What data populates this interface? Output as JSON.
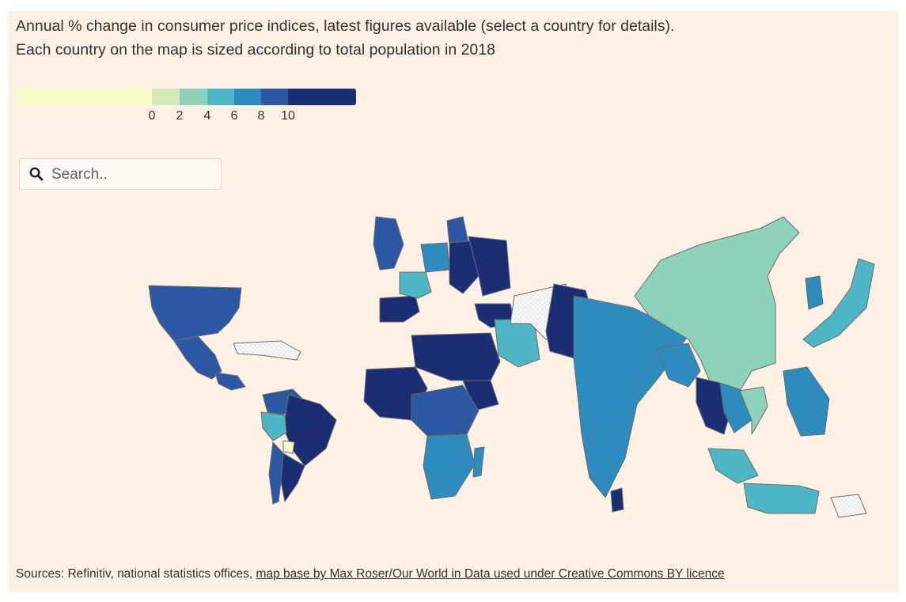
{
  "header": {
    "subtitle_line1": "Annual % change in consumer price indices, latest figures available (select a country for details).",
    "subtitle_line2": "Each country on the map is sized according to total population in 2018"
  },
  "legend": {
    "ticks": [
      "0",
      "2",
      "4",
      "6",
      "8",
      "10"
    ],
    "colors": [
      "#f7fbc8",
      "#d3ecb7",
      "#8fd2bb",
      "#4fb6c5",
      "#2d8bbd",
      "#2c58a3",
      "#1c2e73"
    ]
  },
  "search": {
    "placeholder": "Search..",
    "icon": "search-icon"
  },
  "map": {
    "nodata_fill": "#ebebeb",
    "regions": [
      {
        "name": "north-america",
        "level": 5
      },
      {
        "name": "mexico",
        "level": 5
      },
      {
        "name": "central-america",
        "level": 5
      },
      {
        "name": "caribbean",
        "level": "nodata"
      },
      {
        "name": "colombia-venezuela",
        "level": 5
      },
      {
        "name": "brazil",
        "level": 6
      },
      {
        "name": "peru",
        "level": 3
      },
      {
        "name": "bolivia",
        "level": 0
      },
      {
        "name": "chile",
        "level": 5
      },
      {
        "name": "argentina",
        "level": 6
      },
      {
        "name": "united-kingdom",
        "level": 5
      },
      {
        "name": "iberia",
        "level": 6
      },
      {
        "name": "france",
        "level": 3
      },
      {
        "name": "germany",
        "level": 4
      },
      {
        "name": "scandinavia",
        "level": 5
      },
      {
        "name": "eastern-europe",
        "level": 6
      },
      {
        "name": "russia",
        "level": 6
      },
      {
        "name": "turkey",
        "level": 6
      },
      {
        "name": "north-africa",
        "level": 6
      },
      {
        "name": "west-africa",
        "level": 6
      },
      {
        "name": "ethiopia",
        "level": 6
      },
      {
        "name": "central-africa",
        "level": 5
      },
      {
        "name": "southern-africa",
        "level": 4
      },
      {
        "name": "madagascar",
        "level": 4
      },
      {
        "name": "middle-east",
        "level": 3
      },
      {
        "name": "iran-central-asia",
        "level": "nodata"
      },
      {
        "name": "pakistan",
        "level": 6
      },
      {
        "name": "india",
        "level": 4
      },
      {
        "name": "sri-lanka",
        "level": 6
      },
      {
        "name": "bangladesh",
        "level": 4
      },
      {
        "name": "china",
        "level": 2
      },
      {
        "name": "korea",
        "level": 4
      },
      {
        "name": "japan",
        "level": 3
      },
      {
        "name": "myanmar",
        "level": 6
      },
      {
        "name": "thailand",
        "level": 4
      },
      {
        "name": "vietnam",
        "level": 2
      },
      {
        "name": "philippines",
        "level": 4
      },
      {
        "name": "malaysia",
        "level": 3
      },
      {
        "name": "indonesia",
        "level": 3
      },
      {
        "name": "oceania",
        "level": "nodata"
      }
    ]
  },
  "sources": {
    "prefix": "Sources: Refinitiv, national statistics offices, ",
    "link": "map base by Max Roser/Our World in Data used under Creative Commons BY licence"
  }
}
